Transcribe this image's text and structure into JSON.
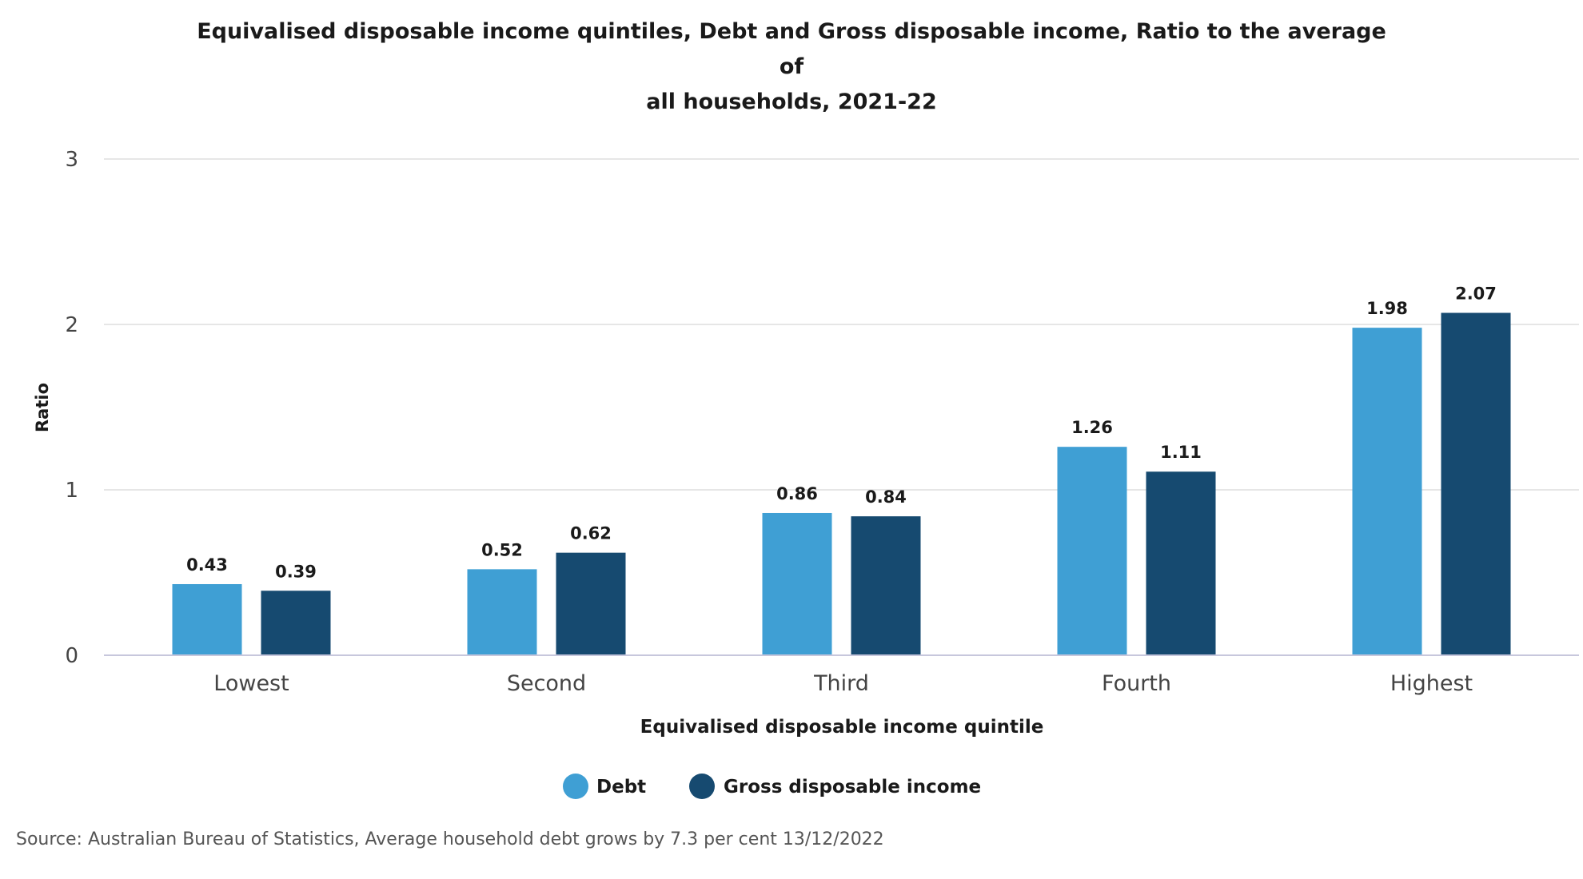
{
  "title_lines": [
    "Equivalised disposable income quintiles, Debt and Gross disposable income, Ratio to the average of",
    "all households, 2021-22"
  ],
  "source": "Source: Australian Bureau of Statistics, Average household debt grows by 7.3 per cent 13/12/2022",
  "chart_data": {
    "type": "bar",
    "title": "Equivalised disposable income quintiles, Debt and Gross disposable income, Ratio to the average of all households, 2021-22",
    "xlabel": "Equivalised disposable income quintile",
    "ylabel": "Ratio",
    "categories": [
      "Lowest",
      "Second",
      "Third",
      "Fourth",
      "Highest"
    ],
    "series": [
      {
        "name": "Debt",
        "color": "#3f9fd4",
        "values": [
          0.43,
          0.52,
          0.86,
          1.26,
          1.98
        ],
        "labels": [
          "0.43",
          "0.52",
          "0.86",
          "1.26",
          "1.98"
        ]
      },
      {
        "name": "Gross disposable income",
        "color": "#164a70",
        "values": [
          0.39,
          0.62,
          0.84,
          1.11,
          2.07
        ],
        "labels": [
          "0.39",
          "0.62",
          "0.84",
          "1.11",
          "2.07"
        ]
      }
    ],
    "ylim": [
      0,
      3
    ],
    "yticks": [
      0,
      1,
      2,
      3
    ],
    "ytick_labels": [
      "0",
      "1",
      "2",
      "3"
    ],
    "grid": true,
    "legend_placement": "bottom-center",
    "data_labels": true
  }
}
